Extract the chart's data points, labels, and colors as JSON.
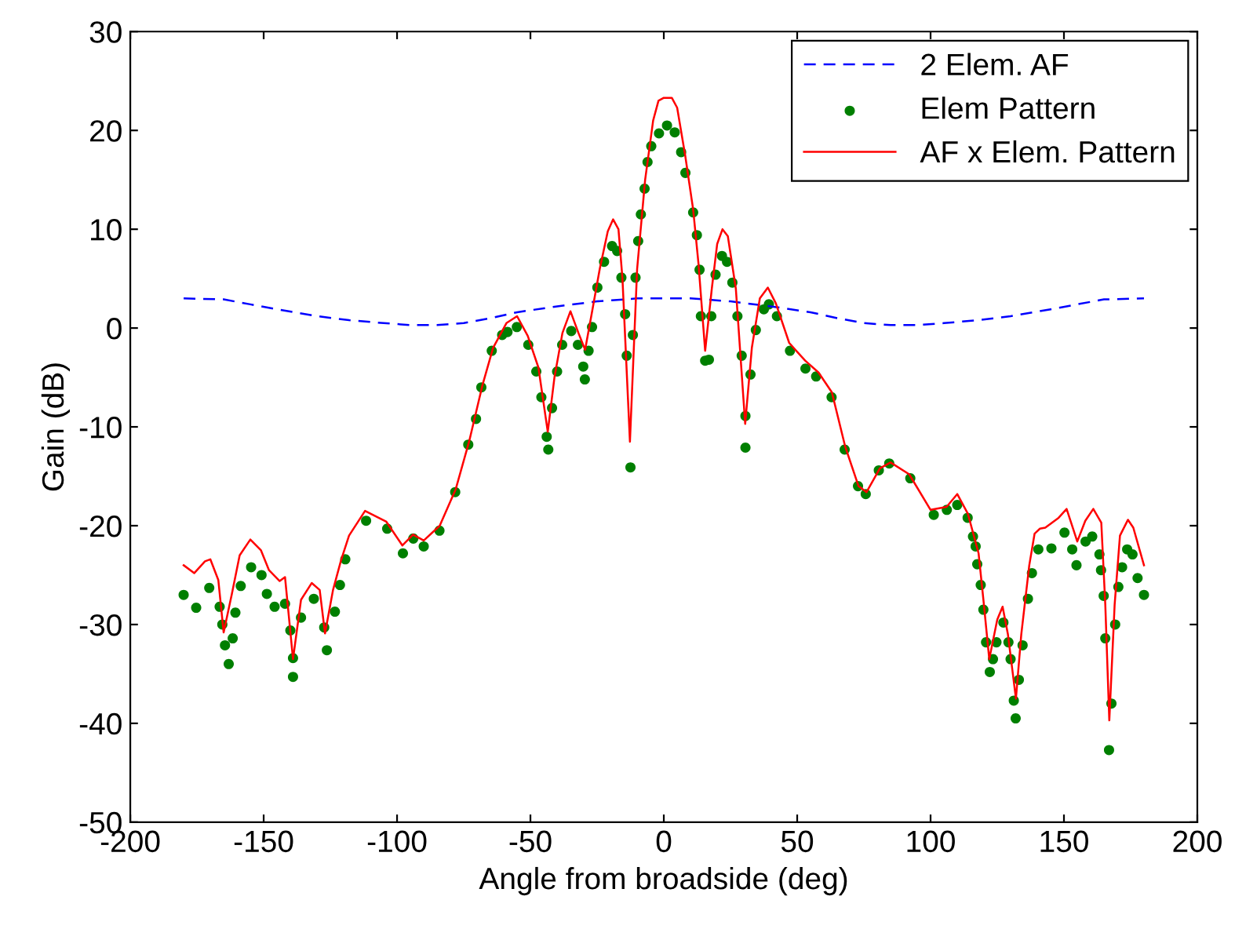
{
  "chart_data": {
    "type": "line",
    "xlabel": "Angle from broadside (deg)",
    "ylabel": "Gain (dB)",
    "xlim": [
      -200,
      200
    ],
    "xticks": [
      -200,
      -150,
      -100,
      -50,
      0,
      50,
      100,
      150,
      200
    ],
    "ylim": [
      -50,
      30
    ],
    "yticks": [
      -50,
      -40,
      -30,
      -20,
      -10,
      0,
      10,
      20,
      30
    ],
    "grid": false,
    "legend": "top right",
    "series": [
      {
        "name": "2 Elem. AF",
        "line_style": "dashed",
        "marker": "none",
        "color": "#0000ff",
        "x": [
          -180,
          -165,
          -155,
          -145,
          -130,
          -118,
          -105,
          -95,
          -85,
          -75,
          -65,
          -55,
          -40,
          -25,
          -10,
          0,
          10,
          25,
          40,
          55,
          65,
          75,
          85,
          95,
          105,
          118,
          130,
          145,
          155,
          165,
          180
        ],
        "values": [
          3.0,
          2.9,
          2.4,
          1.9,
          1.2,
          0.8,
          0.5,
          0.3,
          0.3,
          0.5,
          1.0,
          1.6,
          2.2,
          2.7,
          3.0,
          3.0,
          3.0,
          2.7,
          2.2,
          1.6,
          1.0,
          0.5,
          0.3,
          0.3,
          0.5,
          0.8,
          1.2,
          1.9,
          2.4,
          2.9,
          3.0
        ]
      },
      {
        "name": "Elem Pattern",
        "type": "scatter",
        "marker": "circle",
        "color": "#007f00",
        "x": [
          -180,
          -175.3,
          -170.4,
          -166.5,
          -165.5,
          -164.5,
          -163.1,
          -161.6,
          -160.6,
          -158.6,
          -154.7,
          -150.8,
          -148.8,
          -145.9,
          -142,
          -140,
          -139,
          -139,
          -136,
          -131.2,
          -127.3,
          -126.3,
          -123.3,
          -121.4,
          -119.4,
          -111.6,
          -103.7,
          -97.8,
          -93.9,
          -90,
          -84.1,
          -78.2,
          -73.3,
          -70.4,
          -68.4,
          -64.5,
          -60.6,
          -58.6,
          -55.1,
          -50.8,
          -47.8,
          -45.9,
          -43.9,
          -43.3,
          -41.9,
          -40,
          -38.1,
          -34.7,
          -32.2,
          -30.2,
          -29.6,
          -28.2,
          -26.9,
          -24.9,
          -22.4,
          -19.4,
          -17.5,
          -15.9,
          -14.5,
          -13.9,
          -12.5,
          -11.6,
          -10.6,
          -9.6,
          -8.6,
          -7.2,
          -6.1,
          -4.7,
          -1.8,
          1.2,
          4.1,
          6.5,
          8.1,
          11,
          12.4,
          13.4,
          13.9,
          15.5,
          16.9,
          17.8,
          19.4,
          21.8,
          23.7,
          25.7,
          27.6,
          29.2,
          30.6,
          30.6,
          32.5,
          34.5,
          37.5,
          39.4,
          42.4,
          47.3,
          53.1,
          57.1,
          62.9,
          67.8,
          72.8,
          75.7,
          80.6,
          84.5,
          92.4,
          101.2,
          106.1,
          110,
          113.9,
          115.9,
          116.9,
          117.5,
          118.8,
          119.8,
          120.8,
          122.2,
          123.4,
          124.7,
          127.3,
          129.2,
          130,
          131.2,
          131.9,
          133.1,
          134.5,
          136.5,
          138,
          140.4,
          145.3,
          150.2,
          153.1,
          154.7,
          158.1,
          160.6,
          163.3,
          163.9,
          164.9,
          165.5,
          166.9,
          167.8,
          169.2,
          170.4,
          171.8,
          173.7,
          175.7,
          177.6,
          180
        ],
        "values": [
          -27.0,
          -28.3,
          -26.3,
          -28.2,
          -30.0,
          -32.1,
          -34.0,
          -31.4,
          -28.8,
          -26.1,
          -24.2,
          -25.0,
          -26.9,
          -28.2,
          -27.9,
          -30.6,
          -33.4,
          -35.3,
          -29.3,
          -27.4,
          -30.3,
          -32.6,
          -28.7,
          -26.0,
          -23.4,
          -19.5,
          -20.3,
          -22.8,
          -21.3,
          -22.1,
          -20.5,
          -16.6,
          -11.8,
          -9.2,
          -6.0,
          -2.3,
          -0.7,
          -0.4,
          0.1,
          -1.7,
          -4.4,
          -7.0,
          -11.0,
          -12.3,
          -8.1,
          -4.4,
          -1.7,
          -0.3,
          -1.7,
          -3.9,
          -5.2,
          -2.3,
          0.1,
          4.1,
          6.7,
          8.3,
          7.8,
          5.1,
          1.4,
          -2.8,
          -14.1,
          -0.7,
          5.1,
          8.8,
          11.5,
          14.1,
          16.8,
          18.4,
          19.7,
          20.5,
          19.8,
          17.8,
          15.7,
          11.7,
          9.4,
          5.9,
          1.2,
          -3.3,
          -3.2,
          1.2,
          5.4,
          7.3,
          6.7,
          4.6,
          1.2,
          -2.8,
          -8.9,
          -12.1,
          -4.7,
          -0.2,
          1.9,
          2.4,
          1.2,
          -2.3,
          -4.1,
          -4.9,
          -7.0,
          -12.3,
          -16.0,
          -16.8,
          -14.4,
          -13.7,
          -15.2,
          -18.9,
          -18.4,
          -17.9,
          -19.2,
          -21.1,
          -22.1,
          -23.9,
          -26.0,
          -28.5,
          -31.8,
          -34.8,
          -33.5,
          -31.8,
          -29.8,
          -31.8,
          -33.5,
          -37.7,
          -39.5,
          -35.6,
          -32.1,
          -27.4,
          -24.8,
          -22.4,
          -22.3,
          -20.7,
          -22.4,
          -24.0,
          -21.6,
          -21.1,
          -22.9,
          -24.5,
          -27.1,
          -31.4,
          -42.7,
          -38.0,
          -30.0,
          -26.2,
          -24.2,
          -22.4,
          -22.9,
          -25.3,
          -27.0
        ]
      },
      {
        "name": "AF x Elem. Pattern",
        "line_style": "solid",
        "marker": "none",
        "color": "#ff0000",
        "x": [
          -180,
          -176,
          -172,
          -170,
          -167,
          -165,
          -162,
          -159,
          -155,
          -151,
          -148,
          -144,
          -142,
          -139,
          -136,
          -132,
          -129,
          -127,
          -124,
          -121,
          -118,
          -112,
          -104,
          -98,
          -94,
          -90,
          -84,
          -78,
          -73,
          -68,
          -64,
          -59,
          -55,
          -51,
          -47,
          -43.5,
          -41,
          -38,
          -35,
          -32,
          -29.5,
          -27,
          -24,
          -21,
          -19,
          -17,
          -15.5,
          -12.7,
          -10,
          -7,
          -4,
          -2,
          0,
          3,
          5,
          8,
          11,
          13,
          15.5,
          18,
          20,
          22,
          24,
          27,
          30.5,
          33,
          36,
          39,
          42,
          47,
          53,
          58,
          63,
          68,
          73,
          76,
          81,
          85,
          92,
          100,
          106,
          110,
          114,
          118,
          120,
          122,
          125,
          127,
          129,
          132,
          134,
          137,
          139,
          141,
          143,
          148,
          151,
          155,
          158,
          161,
          164,
          165.5,
          167,
          169,
          171,
          174,
          176,
          180
        ],
        "values": [
          -24.0,
          -24.8,
          -23.6,
          -23.4,
          -25.5,
          -30.8,
          -27,
          -23,
          -21.4,
          -22.5,
          -24.5,
          -25.6,
          -25.2,
          -33.5,
          -27.5,
          -25.8,
          -26.5,
          -30.9,
          -26.5,
          -23.5,
          -21,
          -18.5,
          -19.6,
          -22.0,
          -20.9,
          -21.5,
          -20,
          -16.3,
          -11.5,
          -5.8,
          -2.0,
          0.5,
          1.2,
          -0.8,
          -4.0,
          -10.5,
          -5,
          -0.5,
          1.7,
          -0.5,
          -2.2,
          1.5,
          6,
          9.8,
          11.0,
          10,
          5,
          -11.5,
          6,
          15,
          21,
          23,
          23.3,
          23.3,
          22.3,
          17.5,
          12,
          6.5,
          -2.3,
          4,
          8.5,
          10.0,
          9.3,
          4,
          -9.7,
          -2,
          3,
          4.1,
          2.5,
          -1.5,
          -3.3,
          -4.5,
          -6.5,
          -12,
          -16,
          -16.6,
          -14.2,
          -13.6,
          -14.8,
          -18.4,
          -18.1,
          -16.8,
          -18.8,
          -22.8,
          -28,
          -33.5,
          -29.5,
          -28.2,
          -31,
          -37.5,
          -31,
          -24,
          -20.8,
          -20.3,
          -20.2,
          -19.2,
          -18.3,
          -21.6,
          -19.5,
          -18.3,
          -19.7,
          -28,
          -39.7,
          -28,
          -21,
          -19.4,
          -20.2,
          -24.0
        ]
      }
    ]
  }
}
